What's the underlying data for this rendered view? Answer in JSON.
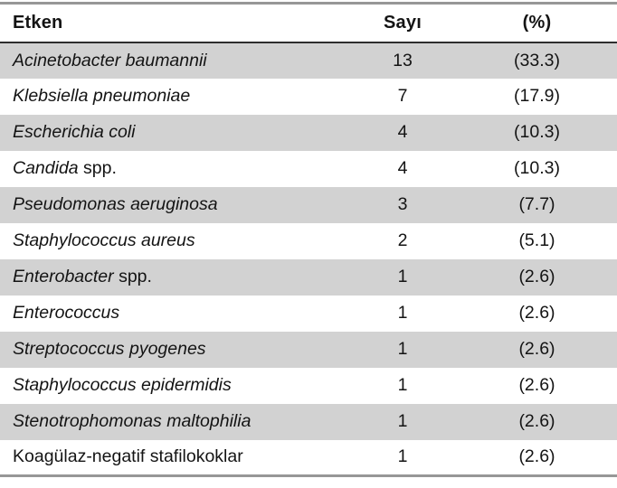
{
  "page": {
    "background": "#ffffff"
  },
  "styles": {
    "stripe_color": "#d2d2d2",
    "outer_rule_color": "#979797",
    "header_rule_color": "#2e2e2e",
    "text_color": "#141414"
  },
  "table": {
    "columns": [
      {
        "label": "Etken",
        "align": "left"
      },
      {
        "label": "Sayı",
        "align": "center"
      },
      {
        "label": "(%)",
        "align": "center"
      }
    ],
    "rows": [
      {
        "name_i": "Acinetobacter baumannii",
        "name_r": "",
        "count": "13",
        "percent": "(33.3)"
      },
      {
        "name_i": "Klebsiella pneumoniae",
        "name_r": "",
        "count": "7",
        "percent": "(17.9)"
      },
      {
        "name_i": "Escherichia coli",
        "name_r": "",
        "count": "4",
        "percent": "(10.3)"
      },
      {
        "name_i": "Candida",
        "name_r": " spp.",
        "count": "4",
        "percent": "(10.3)"
      },
      {
        "name_i": "Pseudomonas aeruginosa",
        "name_r": "",
        "count": "3",
        "percent": "(7.7)"
      },
      {
        "name_i": "Staphylococcus aureus",
        "name_r": "",
        "count": "2",
        "percent": "(5.1)"
      },
      {
        "name_i": "Enterobacter",
        "name_r": " spp.",
        "count": "1",
        "percent": "(2.6)"
      },
      {
        "name_i": "Enterococcus",
        "name_r": "",
        "count": "1",
        "percent": "(2.6)"
      },
      {
        "name_i": "Streptococcus pyogenes",
        "name_r": "",
        "count": "1",
        "percent": "(2.6)"
      },
      {
        "name_i": "Staphylococcus epidermidis",
        "name_r": "",
        "count": "1",
        "percent": "(2.6)"
      },
      {
        "name_i": "Stenotrophomonas maltophilia",
        "name_r": "",
        "count": "1",
        "percent": "(2.6)"
      },
      {
        "name_i": "",
        "name_r": "Koagülaz-negatif stafilokoklar",
        "count": "1",
        "percent": "(2.6)"
      }
    ]
  }
}
